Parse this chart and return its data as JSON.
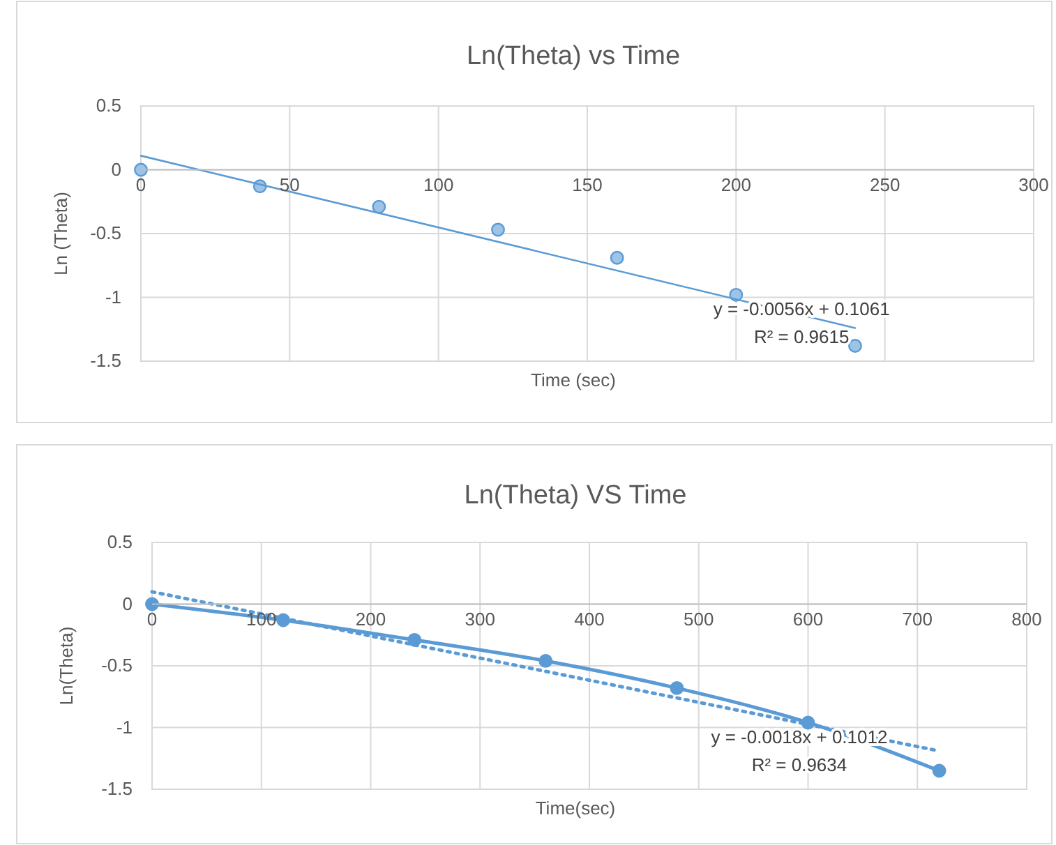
{
  "chart_data": [
    {
      "type": "scatter",
      "title": "Ln(Theta) vs Time",
      "xlabel": "Time (sec)",
      "ylabel": "Ln (Theta)",
      "xlim": [
        0,
        300
      ],
      "xticks": [
        0,
        50,
        100,
        150,
        200,
        250,
        300
      ],
      "ylim": [
        -1.5,
        0.5
      ],
      "yticks": [
        0.5,
        0,
        -0.5,
        -1,
        -1.5
      ],
      "grid": true,
      "marker": "circle",
      "series": [
        {
          "color": "#9dc3e6",
          "x": [
            0,
            40,
            80,
            120,
            160,
            200,
            240
          ],
          "values": [
            0,
            -0.13,
            -0.29,
            -0.47,
            -0.69,
            -0.98,
            -1.38
          ]
        },
        {
          "type": "line",
          "color": "#5b9bd5",
          "marker": "none",
          "line_style": "solid",
          "x": [
            0,
            240
          ],
          "values": [
            0.11,
            -1.24
          ]
        }
      ],
      "annotations": [
        "y = -0.0056x + 0.1061",
        "R² = 0.9615"
      ]
    },
    {
      "type": "line",
      "title": "Ln(Theta) VS Time",
      "xlabel": "Time(sec)",
      "ylabel": "Ln(Theta)",
      "xlim": [
        0,
        800
      ],
      "xticks": [
        0,
        100,
        200,
        300,
        400,
        500,
        600,
        700,
        800
      ],
      "ylim": [
        -1.5,
        0.5
      ],
      "yticks": [
        0.5,
        0,
        -0.5,
        -1,
        -1.5
      ],
      "grid": true,
      "marker": "circle",
      "series": [
        {
          "color": "#5b9bd5",
          "line_style": "solid",
          "x": [
            0,
            120,
            240,
            360,
            480,
            600,
            720
          ],
          "values": [
            0,
            -0.13,
            -0.29,
            -0.46,
            -0.68,
            -0.96,
            -1.35
          ]
        },
        {
          "type": "line",
          "color": "#5b9bd5",
          "marker": "none",
          "line_style": "dotted",
          "x": [
            0,
            720
          ],
          "values": [
            0.1,
            -1.19
          ]
        }
      ],
      "annotations": [
        "y = -0.0018x + 0.1012",
        "R² = 0.9634"
      ]
    }
  ]
}
